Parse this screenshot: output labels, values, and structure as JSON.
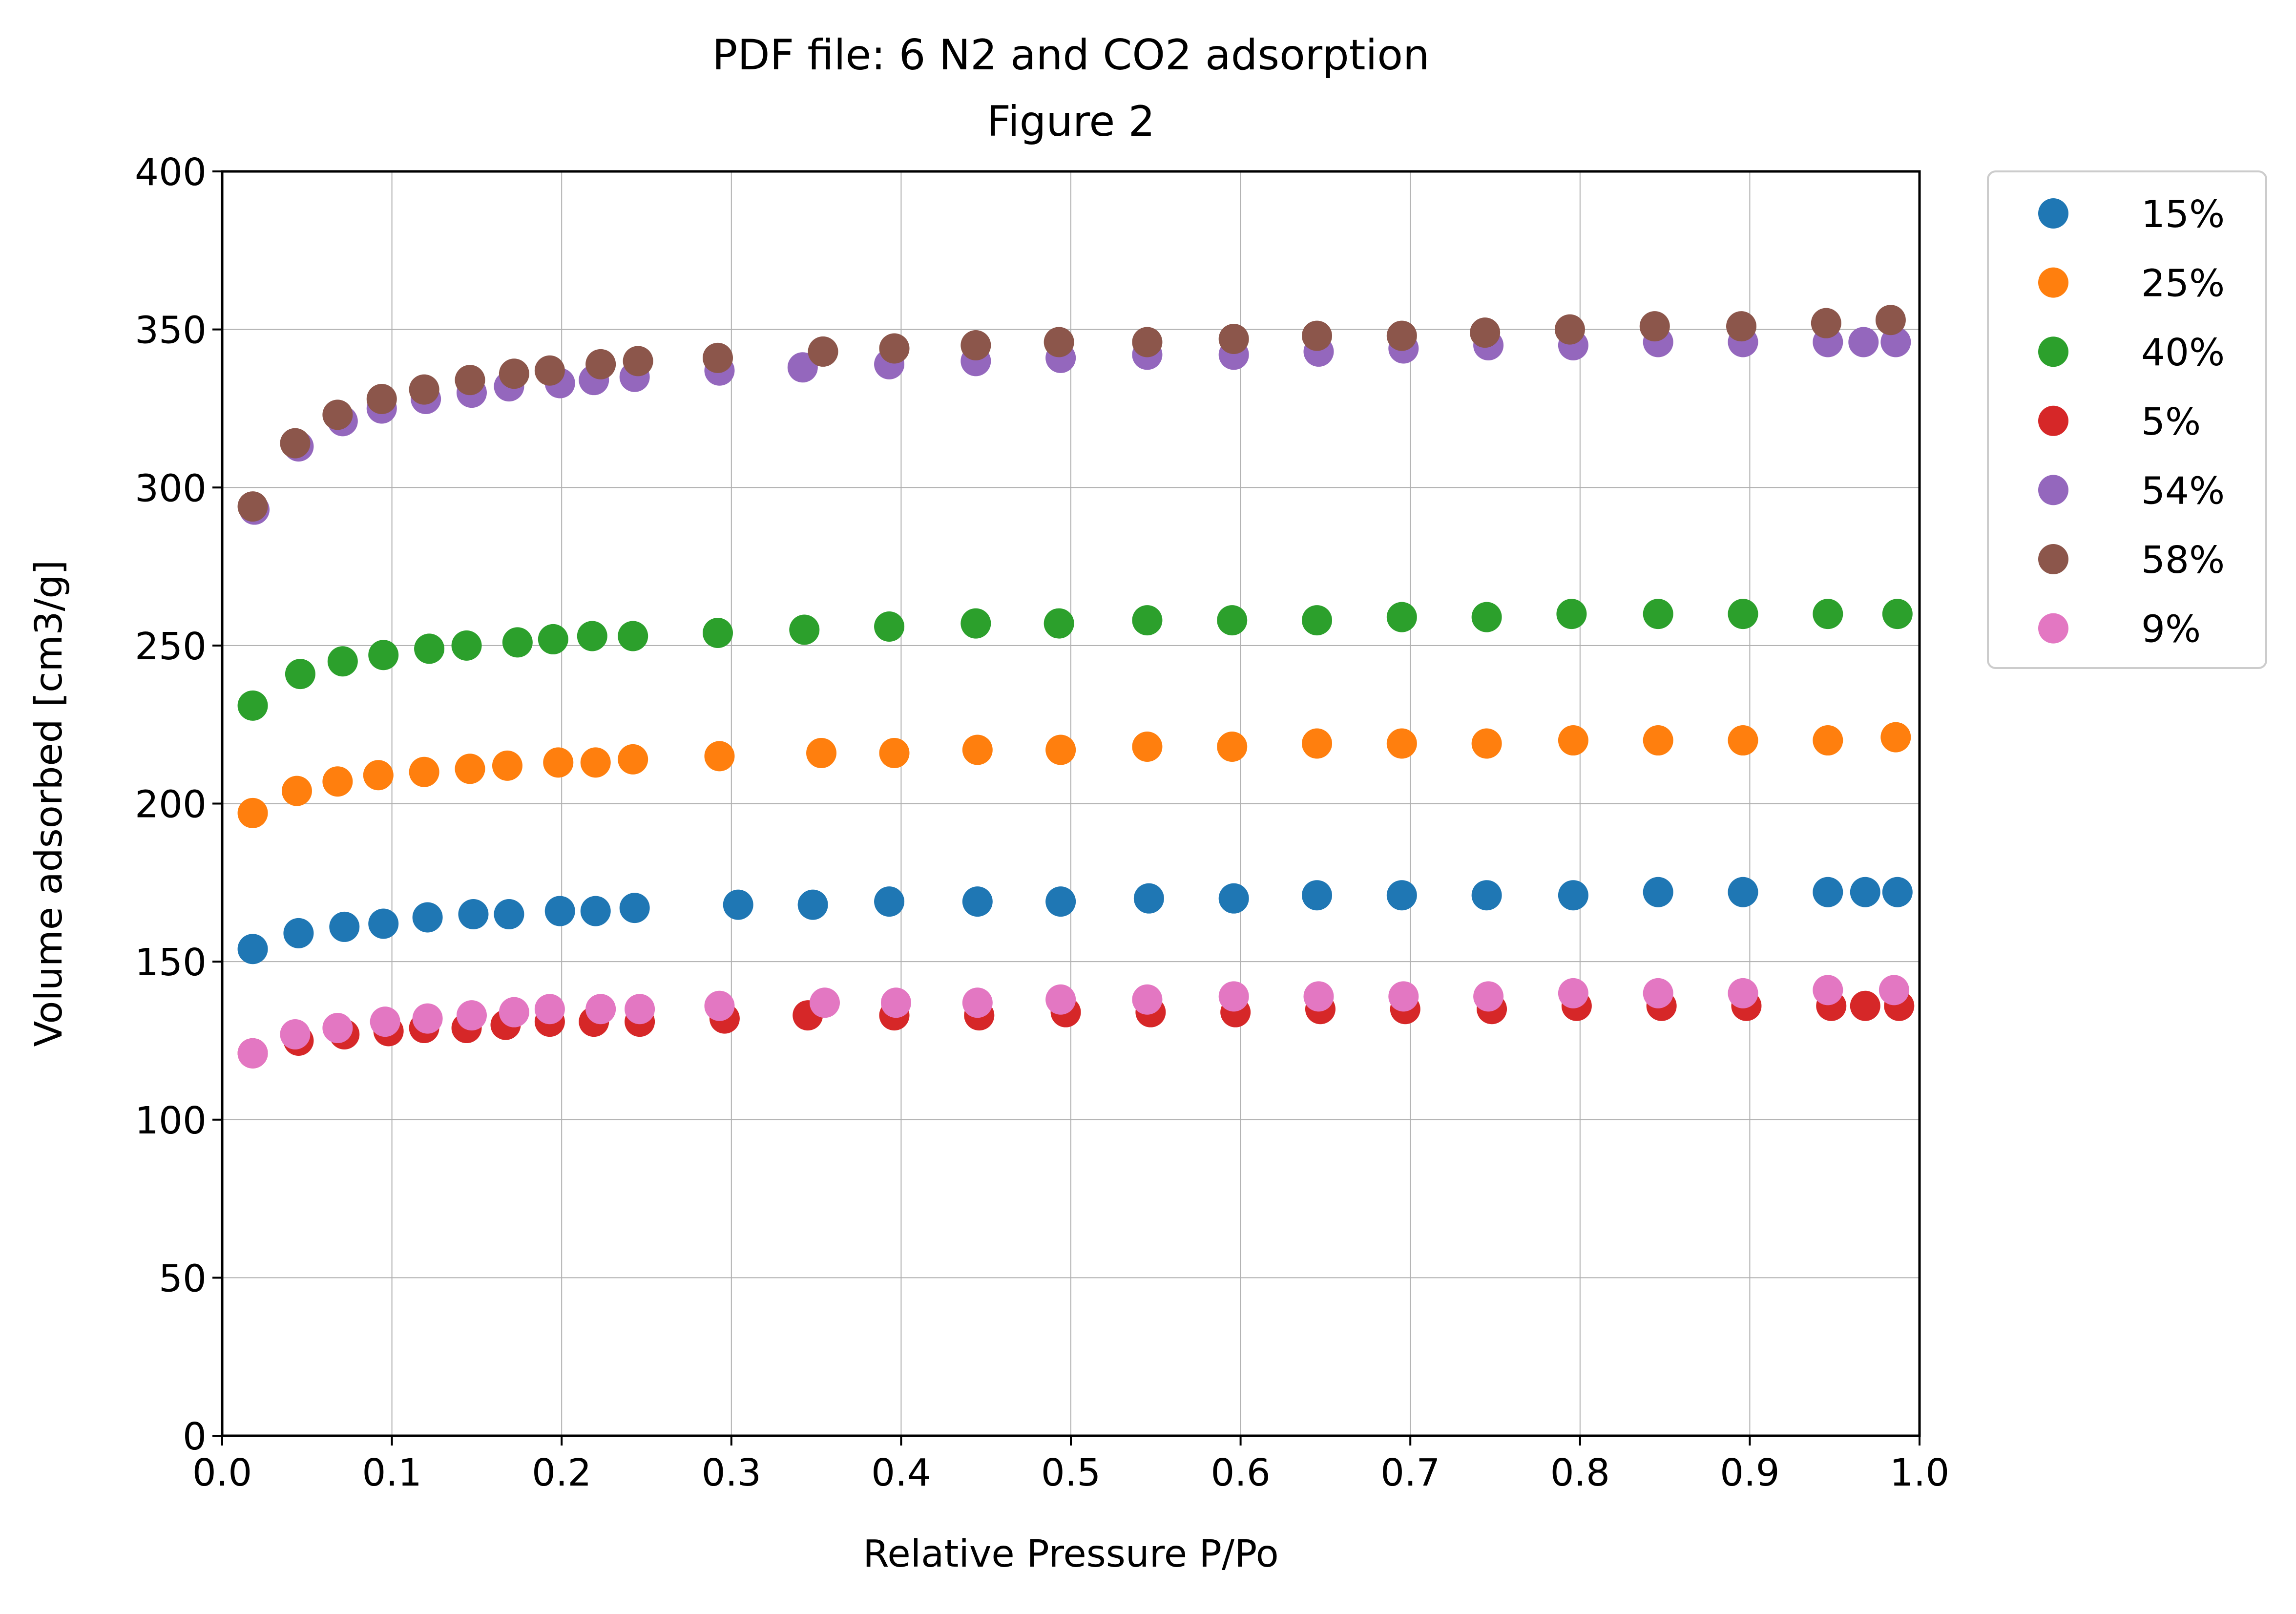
{
  "chart_data": {
    "type": "scatter",
    "title": "PDF file: 6 N2 and CO2 adsorption",
    "subtitle": "Figure 2",
    "xlabel": "Relative Pressure P/Po",
    "ylabel": "Volume adsorbed [cm3/g]",
    "xlim": [
      0.0,
      1.0
    ],
    "ylim": [
      0,
      400
    ],
    "xticks": [
      "0.0",
      "0.1",
      "0.2",
      "0.3",
      "0.4",
      "0.5",
      "0.6",
      "0.7",
      "0.8",
      "0.9",
      "1.0"
    ],
    "yticks": [
      "0",
      "50",
      "100",
      "150",
      "200",
      "250",
      "300",
      "350",
      "400"
    ],
    "grid": true,
    "legend_position": "outside-right-top",
    "series": [
      {
        "name": "15%",
        "color": "#1f77b4",
        "x": [
          0.018,
          0.045,
          0.072,
          0.095,
          0.121,
          0.148,
          0.169,
          0.199,
          0.22,
          0.243,
          0.304,
          0.348,
          0.393,
          0.445,
          0.494,
          0.546,
          0.596,
          0.645,
          0.695,
          0.745,
          0.796,
          0.846,
          0.896,
          0.946,
          0.968,
          0.987
        ],
        "y": [
          154,
          159,
          161,
          162,
          164,
          165,
          165,
          166,
          166,
          167,
          168,
          168,
          169,
          169,
          169,
          170,
          170,
          171,
          171,
          171,
          171,
          172,
          172,
          172,
          172,
          172
        ]
      },
      {
        "name": "25%",
        "color": "#ff7f0e",
        "x": [
          0.018,
          0.044,
          0.068,
          0.092,
          0.119,
          0.146,
          0.168,
          0.198,
          0.22,
          0.242,
          0.293,
          0.353,
          0.396,
          0.445,
          0.494,
          0.545,
          0.595,
          0.645,
          0.695,
          0.745,
          0.796,
          0.846,
          0.896,
          0.946,
          0.986
        ],
        "y": [
          197,
          204,
          207,
          209,
          210,
          211,
          212,
          213,
          213,
          214,
          215,
          216,
          216,
          217,
          217,
          218,
          218,
          219,
          219,
          219,
          220,
          220,
          220,
          220,
          221
        ]
      },
      {
        "name": "40%",
        "color": "#2ca02c",
        "x": [
          0.018,
          0.046,
          0.071,
          0.095,
          0.122,
          0.144,
          0.174,
          0.195,
          0.218,
          0.242,
          0.292,
          0.343,
          0.393,
          0.444,
          0.493,
          0.545,
          0.595,
          0.645,
          0.695,
          0.745,
          0.795,
          0.846,
          0.896,
          0.946,
          0.987
        ],
        "y": [
          231,
          241,
          245,
          247,
          249,
          250,
          251,
          252,
          253,
          253,
          254,
          255,
          256,
          257,
          257,
          258,
          258,
          258,
          259,
          259,
          260,
          260,
          260,
          260,
          260
        ]
      },
      {
        "name": "5%",
        "color": "#d62728",
        "x": [
          0.018,
          0.045,
          0.072,
          0.098,
          0.119,
          0.144,
          0.167,
          0.193,
          0.219,
          0.246,
          0.296,
          0.345,
          0.396,
          0.446,
          0.497,
          0.547,
          0.597,
          0.647,
          0.697,
          0.748,
          0.798,
          0.848,
          0.898,
          0.948,
          0.968,
          0.988
        ],
        "y": [
          121,
          125,
          127,
          128,
          129,
          129,
          130,
          131,
          131,
          131,
          132,
          133,
          133,
          133,
          134,
          134,
          134,
          135,
          135,
          135,
          136,
          136,
          136,
          136,
          136,
          136
        ]
      },
      {
        "name": "54%",
        "color": "#9467bd",
        "x": [
          0.019,
          0.045,
          0.071,
          0.094,
          0.12,
          0.147,
          0.169,
          0.199,
          0.219,
          0.243,
          0.293,
          0.342,
          0.393,
          0.444,
          0.494,
          0.545,
          0.596,
          0.646,
          0.696,
          0.746,
          0.796,
          0.846,
          0.896,
          0.946,
          0.967,
          0.986
        ],
        "y": [
          293,
          313,
          321,
          325,
          328,
          330,
          332,
          333,
          334,
          335,
          337,
          338,
          339,
          340,
          341,
          342,
          342,
          343,
          344,
          345,
          345,
          346,
          346,
          346,
          346,
          346
        ]
      },
      {
        "name": "58%",
        "color": "#8c564b",
        "x": [
          0.018,
          0.043,
          0.068,
          0.094,
          0.119,
          0.146,
          0.172,
          0.193,
          0.223,
          0.245,
          0.292,
          0.354,
          0.396,
          0.444,
          0.493,
          0.545,
          0.596,
          0.645,
          0.695,
          0.744,
          0.794,
          0.844,
          0.895,
          0.945,
          0.983
        ],
        "y": [
          294,
          314,
          323,
          328,
          331,
          334,
          336,
          337,
          339,
          340,
          341,
          343,
          344,
          345,
          346,
          346,
          347,
          348,
          348,
          349,
          350,
          351,
          351,
          352,
          353
        ]
      },
      {
        "name": "9%",
        "color": "#e377c2",
        "x": [
          0.018,
          0.043,
          0.068,
          0.096,
          0.121,
          0.147,
          0.172,
          0.193,
          0.223,
          0.246,
          0.293,
          0.355,
          0.397,
          0.445,
          0.494,
          0.545,
          0.596,
          0.646,
          0.696,
          0.746,
          0.796,
          0.846,
          0.896,
          0.946,
          0.985
        ],
        "y": [
          121,
          127,
          129,
          131,
          132,
          133,
          134,
          135,
          135,
          135,
          136,
          137,
          137,
          137,
          138,
          138,
          139,
          139,
          139,
          139,
          140,
          140,
          140,
          141,
          141
        ]
      }
    ]
  }
}
